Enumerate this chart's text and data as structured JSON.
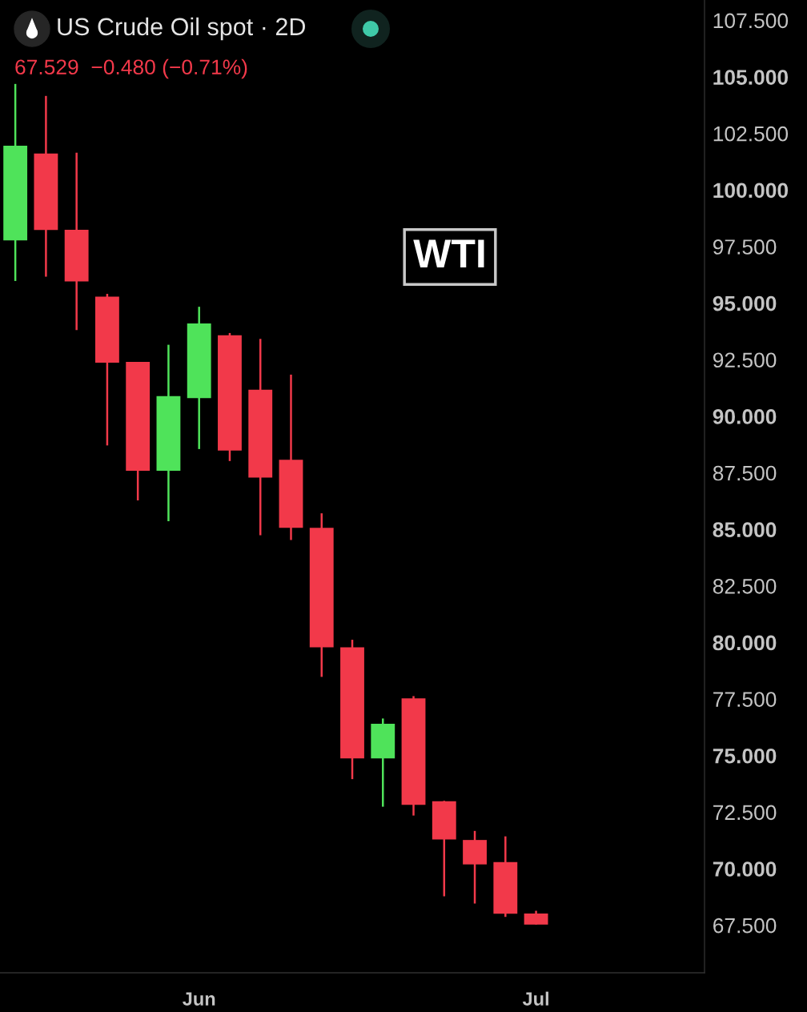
{
  "chart_data": {
    "type": "candlestick",
    "title": "US Crude Oil spot · 2D",
    "subtitle": "67.529  −0.480 (−0.71%)",
    "annotations": [
      "WTI"
    ],
    "categories": [
      null,
      null,
      null,
      null,
      null,
      null,
      "Jun",
      null,
      null,
      null,
      null,
      null,
      null,
      null,
      null,
      null,
      null,
      "Jul",
      null,
      null,
      null,
      null,
      null
    ],
    "ohlc": [
      [
        97.77,
        104.69,
        95.98,
        101.96
      ],
      [
        101.61,
        104.16,
        96.17,
        98.23
      ],
      [
        98.24,
        101.65,
        93.81,
        95.96
      ],
      [
        95.29,
        95.41,
        88.71,
        92.37
      ],
      [
        92.4,
        92.4,
        86.28,
        87.59
      ],
      [
        87.59,
        93.16,
        85.36,
        90.89
      ],
      [
        90.8,
        94.84,
        88.55,
        94.1
      ],
      [
        93.58,
        93.68,
        88.02,
        88.48
      ],
      [
        91.17,
        93.42,
        84.74,
        87.29
      ],
      [
        88.08,
        91.84,
        84.53,
        85.07
      ],
      [
        85.07,
        85.71,
        78.48,
        79.79
      ],
      [
        79.79,
        80.12,
        73.96,
        74.88
      ],
      [
        74.88,
        76.64,
        72.74,
        76.41
      ],
      [
        77.53,
        77.63,
        72.35,
        72.82
      ],
      [
        72.98,
        73.0,
        68.78,
        71.29
      ],
      [
        71.27,
        71.67,
        68.46,
        70.19
      ],
      [
        70.29,
        71.43,
        67.87,
        68.01
      ],
      [
        68.02,
        68.14,
        67.53,
        67.53
      ],
      null,
      null,
      null,
      null,
      null
    ],
    "colors": [
      "#4fe35a",
      "#f2394a",
      "#f2394a",
      "#f2394a",
      "#f2394a",
      "#4fe35a",
      "#4fe35a",
      "#f2394a",
      "#f2394a",
      "#f2394a",
      "#f2394a",
      "#f2394a",
      "#4fe35a",
      "#f2394a",
      "#f2394a",
      "#f2394a",
      "#f2394a",
      "#f2394a",
      null,
      null,
      null,
      null,
      null
    ],
    "ylim": [
      65.4,
      108.4
    ],
    "yticks": [
      {
        "value": 67.5,
        "label": "67.500"
      },
      {
        "value": 70,
        "label": "70.000"
      },
      {
        "value": 72.5,
        "label": "72.500"
      },
      {
        "value": 75,
        "label": "75.000"
      },
      {
        "value": 77.5,
        "label": "77.500"
      },
      {
        "value": 80,
        "label": "80.000"
      },
      {
        "value": 82.5,
        "label": "82.500"
      },
      {
        "value": 85,
        "label": "85.000"
      },
      {
        "value": 87.5,
        "label": "87.500"
      },
      {
        "value": 90,
        "label": "90.000"
      },
      {
        "value": 92.5,
        "label": "92.500"
      },
      {
        "value": 95,
        "label": "95.000"
      },
      {
        "value": 97.5,
        "label": "97.500"
      },
      {
        "value": 100,
        "label": "100.000"
      },
      {
        "value": 102.5,
        "label": "102.500"
      },
      {
        "value": 105,
        "label": "105.000"
      },
      {
        "value": 107.5,
        "label": "107.500"
      }
    ]
  }
}
